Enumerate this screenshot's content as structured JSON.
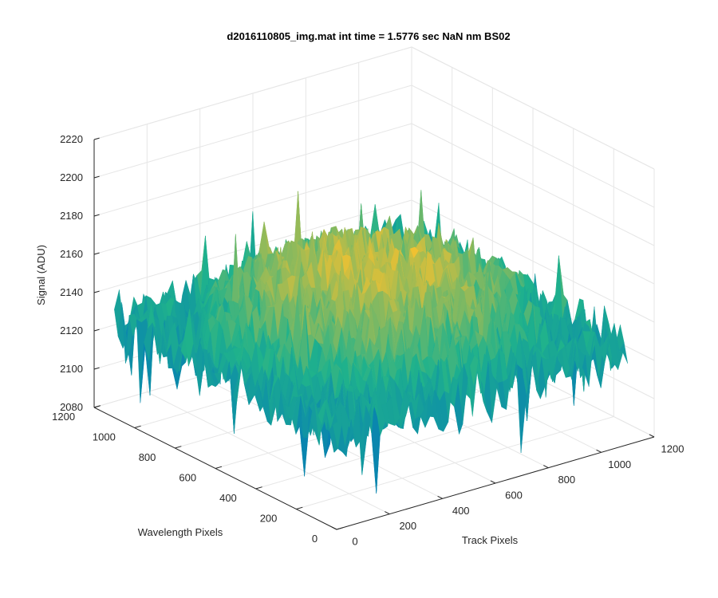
{
  "chart_data": {
    "type": "surface",
    "title": "d2016110805_img.mat int time = 1.5776 sec  NaN nm BS02",
    "xlabel": "Track Pixels",
    "ylabel": "Wavelength Pixels",
    "zlabel": "Signal (ADU)",
    "xlim": [
      0,
      1200
    ],
    "ylim": [
      0,
      1200
    ],
    "zlim": [
      2080,
      2220
    ],
    "xticks": [
      0,
      200,
      400,
      600,
      800,
      1000,
      1200
    ],
    "yticks": [
      0,
      200,
      400,
      600,
      800,
      1000,
      1200
    ],
    "zticks": [
      2080,
      2100,
      2120,
      2140,
      2160,
      2180,
      2200,
      2220
    ],
    "surface": {
      "x_range": [
        0,
        1100
      ],
      "y_range": [
        0,
        1100
      ],
      "mean_signal": 2150,
      "center_signal": 2165,
      "edge_signal": 2130,
      "noise_min": 2085,
      "noise_max": 2205,
      "colormap": "parula",
      "color_low": "#0072bd",
      "color_mid": "#1fb28c",
      "color_high": "#f4c12f"
    },
    "grid": true,
    "view": "3d-default"
  }
}
